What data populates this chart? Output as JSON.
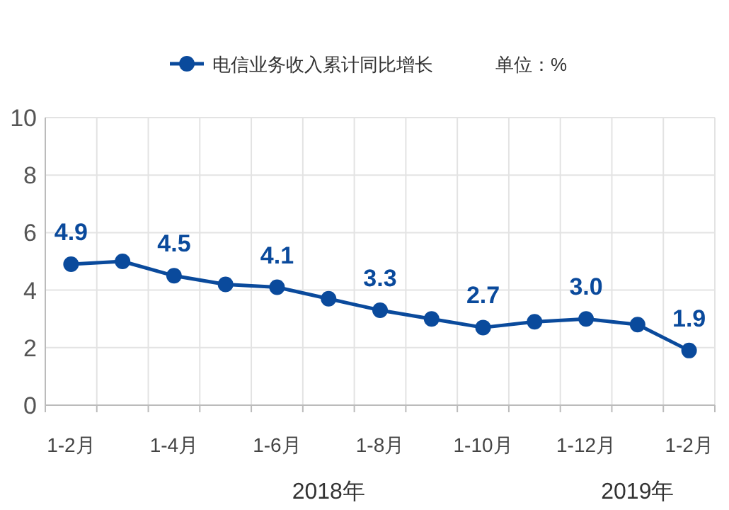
{
  "chart_data": {
    "type": "line",
    "categories": [
      "1-2月",
      null,
      "1-4月",
      null,
      "1-6月",
      null,
      "1-8月",
      null,
      "1-10月",
      null,
      "1-12月",
      null,
      "1-2月"
    ],
    "series": [
      {
        "name": "电信业务收入累计同比增长",
        "color": "#0a4a9c",
        "values": [
          4.9,
          5.0,
          4.5,
          4.2,
          4.1,
          3.7,
          3.3,
          3.0,
          2.7,
          2.9,
          3.0,
          2.8,
          1.9
        ],
        "value_labels": [
          "4.9",
          null,
          "4.5",
          null,
          "4.1",
          null,
          "3.3",
          null,
          "2.7",
          null,
          "3.0",
          null,
          "1.9"
        ]
      }
    ],
    "ylim": [
      0,
      10
    ],
    "yticks": [
      0,
      2,
      4,
      6,
      8,
      10
    ],
    "grid": true,
    "legend": "top",
    "marker": "circle",
    "line_style": "solid",
    "annotations": [
      "单位：%",
      "2018年",
      "2019年"
    ]
  }
}
